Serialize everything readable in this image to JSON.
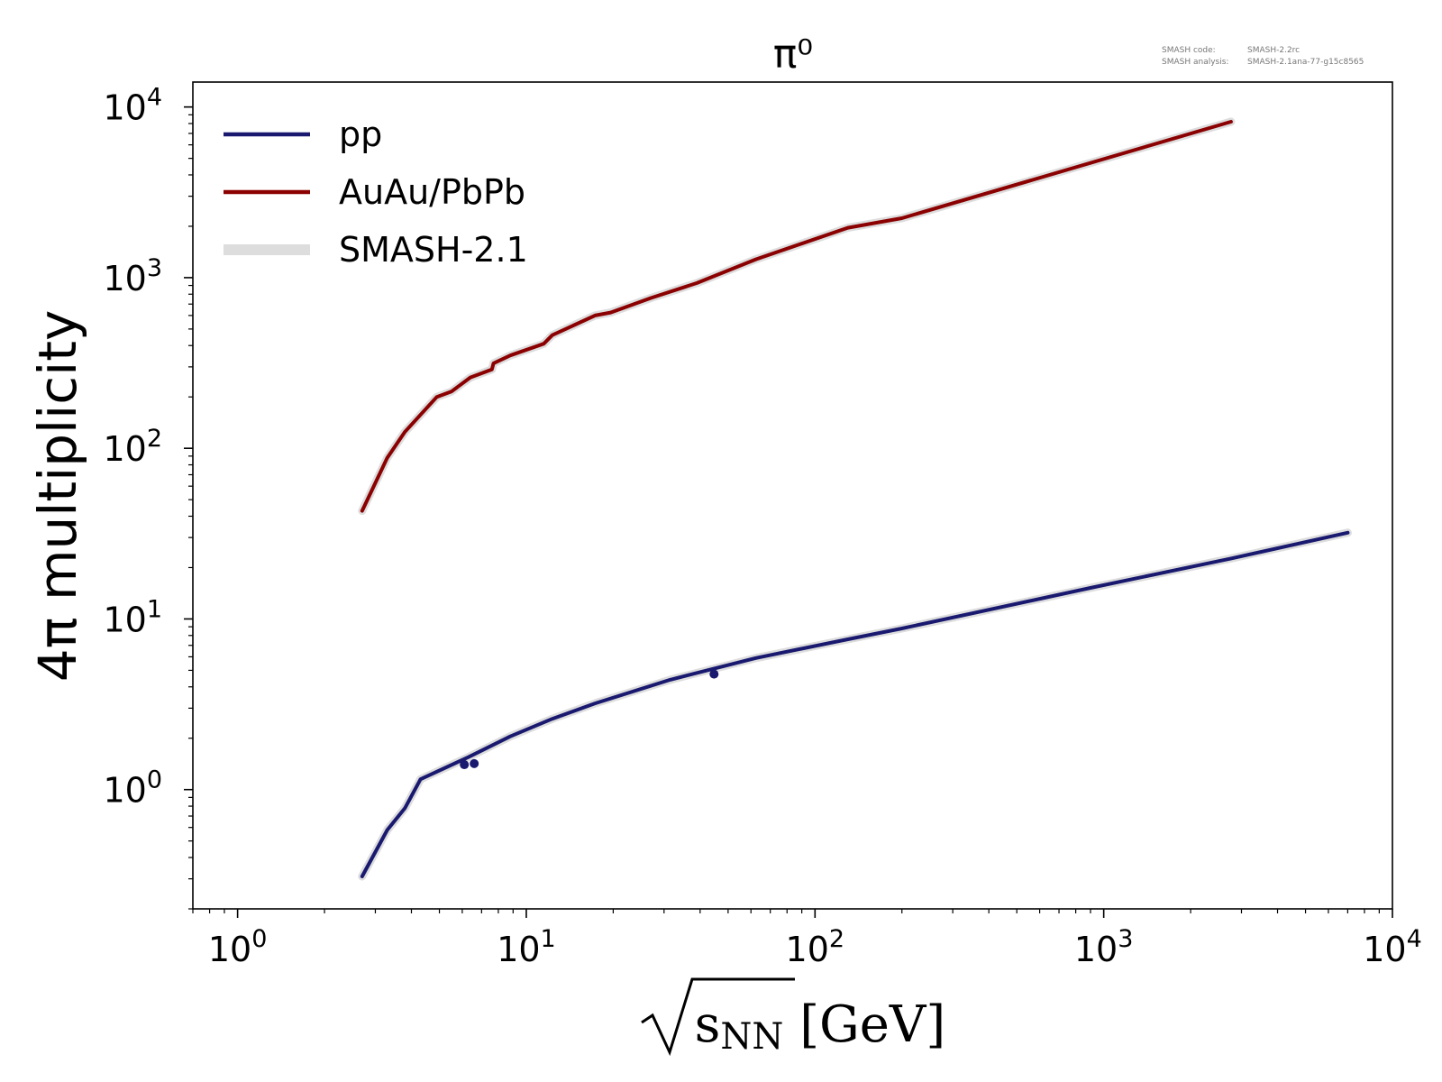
{
  "meta": {
    "code_label": "SMASH code:",
    "code_value": "SMASH-2.2rc",
    "analysis_label": "SMASH analysis:",
    "analysis_value": "SMASH-2.1ana-77-g15c8565"
  },
  "chart_data": {
    "type": "line",
    "title": "π⁰",
    "xlabel": {
      "radical_symbol": "√",
      "main": "s",
      "subscript": "NN",
      "unit": " [GeV]"
    },
    "ylabel": "4π multiplicity",
    "xscale": "log",
    "yscale": "log",
    "xlim": [
      0.7,
      10000
    ],
    "ylim": [
      0.2,
      14000
    ],
    "x_ticks": [
      {
        "value": 1,
        "base": "10",
        "exp": "0"
      },
      {
        "value": 10,
        "base": "10",
        "exp": "1"
      },
      {
        "value": 100,
        "base": "10",
        "exp": "2"
      },
      {
        "value": 1000,
        "base": "10",
        "exp": "3"
      },
      {
        "value": 10000,
        "base": "10",
        "exp": "4"
      }
    ],
    "y_ticks": [
      {
        "value": 1,
        "base": "10",
        "exp": "0"
      },
      {
        "value": 10,
        "base": "10",
        "exp": "1"
      },
      {
        "value": 100,
        "base": "10",
        "exp": "2"
      },
      {
        "value": 1000,
        "base": "10",
        "exp": "3"
      },
      {
        "value": 10000,
        "base": "10",
        "exp": "4"
      }
    ],
    "grid": false,
    "legend_position": "top-left",
    "legend": [
      {
        "label": "pp",
        "color": "#191970",
        "style": "line"
      },
      {
        "label": "AuAu/PbPb",
        "color": "#8b0000",
        "style": "line"
      },
      {
        "label": "SMASH-2.1",
        "color": "#dddddd",
        "style": "band"
      }
    ],
    "series": [
      {
        "name": "pp",
        "color": "#191970",
        "points": [
          [
            2.7,
            0.31
          ],
          [
            3.3,
            0.58
          ],
          [
            3.8,
            0.78
          ],
          [
            4.3,
            1.15
          ],
          [
            6.3,
            1.55
          ],
          [
            8.8,
            2.05
          ],
          [
            12.3,
            2.6
          ],
          [
            17.3,
            3.2
          ],
          [
            31.5,
            4.4
          ],
          [
            62.4,
            5.9
          ],
          [
            130,
            7.6
          ],
          [
            200,
            8.8
          ],
          [
            900,
            15.2
          ],
          [
            2760,
            22.6
          ],
          [
            7000,
            32.0
          ]
        ]
      },
      {
        "name": "AuAu/PbPb",
        "color": "#8b0000",
        "points": [
          [
            2.7,
            43
          ],
          [
            3.3,
            88
          ],
          [
            3.8,
            125
          ],
          [
            4.9,
            200
          ],
          [
            5.5,
            215
          ],
          [
            6.4,
            260
          ],
          [
            7.6,
            290
          ],
          [
            7.7,
            315
          ],
          [
            8.8,
            350
          ],
          [
            11.5,
            410
          ],
          [
            12.3,
            460
          ],
          [
            17.3,
            600
          ],
          [
            19.6,
            625
          ],
          [
            27,
            760
          ],
          [
            39,
            930
          ],
          [
            62.4,
            1280
          ],
          [
            130,
            1960
          ],
          [
            200,
            2230
          ],
          [
            2760,
            8200
          ]
        ]
      }
    ],
    "experimental_points": [
      {
        "series": "pp",
        "x": 6.1,
        "y": 1.4
      },
      {
        "series": "pp",
        "x": 6.6,
        "y": 1.42
      },
      {
        "series": "pp",
        "x": 44.7,
        "y": 4.75
      }
    ]
  }
}
